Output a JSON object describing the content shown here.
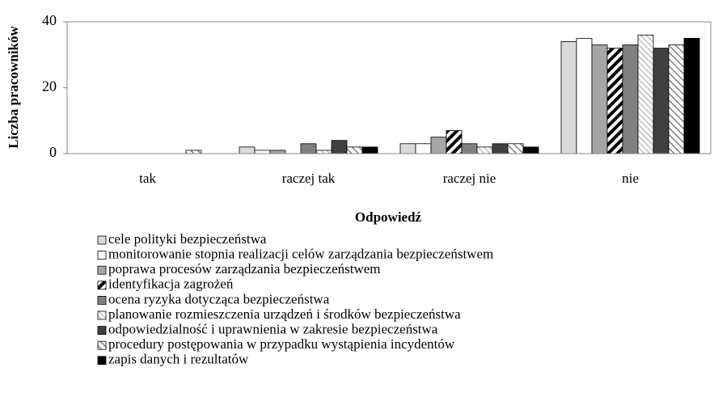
{
  "chart_data": {
    "type": "bar",
    "xlabel": "Odpowiedź",
    "ylabel": "Liczba pracowników",
    "categories": [
      "tak",
      "raczej tak",
      "raczej nie",
      "nie"
    ],
    "ylim": [
      0,
      40
    ],
    "yticks": [
      0,
      20,
      40
    ],
    "grid": false,
    "series": [
      {
        "name": "cele polityki bezpieczeństwa",
        "color": "#d9d9d9",
        "values": [
          0,
          2,
          3,
          34
        ]
      },
      {
        "name": "monitorowanie stopnia realizacji celów zarządzania bezpieczeństwem",
        "color": "#ffffff",
        "values": [
          0,
          1,
          3,
          35
        ]
      },
      {
        "name": "poprawa procesów zarządzania bezpieczeństwem",
        "color": "#a6a6a6",
        "values": [
          0,
          1,
          5,
          33
        ]
      },
      {
        "name": "identyfikacja zagrożeń",
        "color": "#ffffff",
        "pattern": "#000000",
        "values": [
          0,
          0,
          7,
          32
        ]
      },
      {
        "name": "ocena ryzyka dotycząca bezpieczeństwa",
        "color": "#808080",
        "values": [
          0,
          3,
          3,
          33
        ]
      },
      {
        "name": "planowanie rozmieszczenia urządzeń i środków bezpieczeństwa",
        "color": "#ffffff",
        "pattern": "#bfbfbf",
        "values": [
          0,
          1,
          2,
          36
        ]
      },
      {
        "name": "odpowiedzialność i uprawnienia w zakresie bezpieczeństwa",
        "color": "#404040",
        "values": [
          0,
          4,
          3,
          32
        ]
      },
      {
        "name": "procedury postępowania w przypadku wystąpienia incydentów",
        "color": "#ffffff",
        "pattern": "#808080",
        "values": [
          1,
          2,
          3,
          33
        ]
      },
      {
        "name": "zapis danych i rezultatów",
        "color": "#000000",
        "values": [
          0,
          2,
          2,
          35
        ]
      }
    ]
  }
}
